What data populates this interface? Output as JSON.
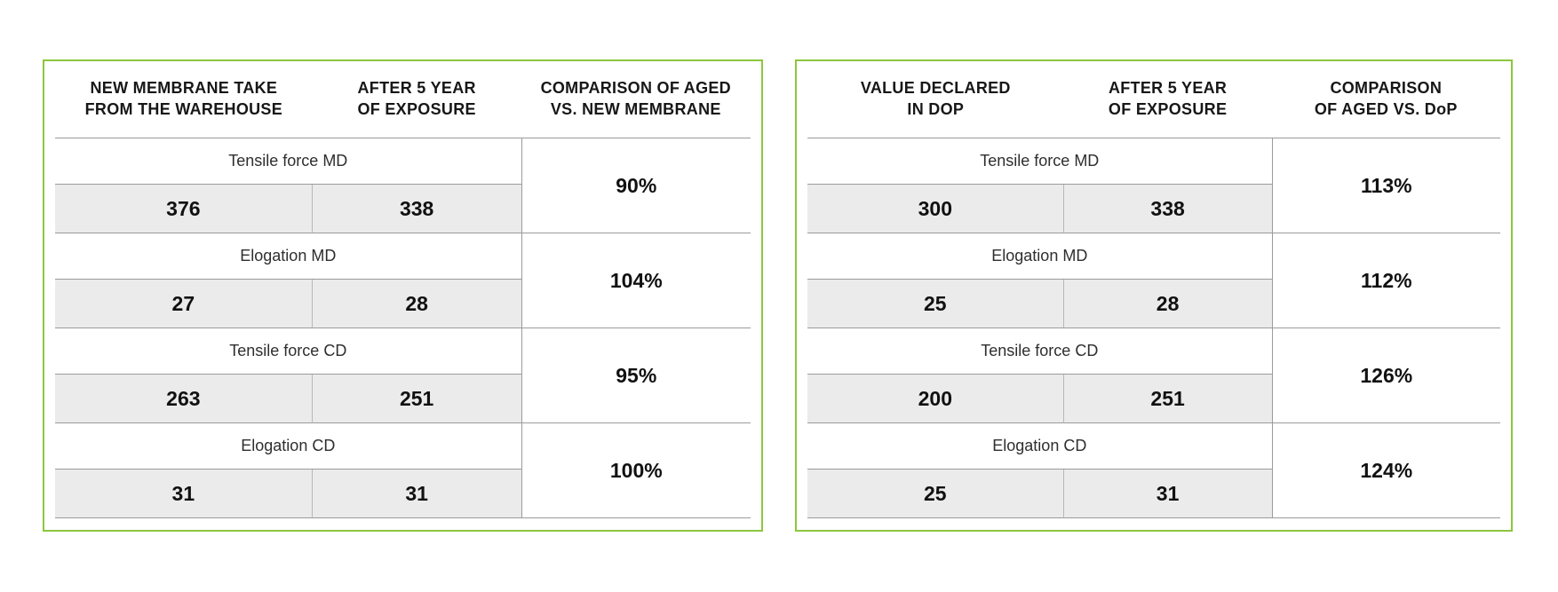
{
  "theme": {
    "background": "#ffffff",
    "border_green": "#8CC63F",
    "cell_gray": "#EBEBEB",
    "line_gray": "#9B9B9B",
    "text_color": "#1A1A1A"
  },
  "chart_data": [
    {
      "type": "table",
      "title": "Aged vs. new membrane comparison",
      "columns": [
        {
          "line1": "NEW MEMBRANE TAKE",
          "line2": "FROM THE WAREHOUSE"
        },
        {
          "line1": "AFTER 5 YEAR",
          "line2": "OF EXPOSURE"
        },
        {
          "line1": "COMPARISON OF AGED",
          "line2": "VS. NEW MEMBRANE"
        }
      ],
      "rows": [
        {
          "label": "Tensile force MD",
          "new_value": "376",
          "aged_value": "338",
          "comparison": "90%"
        },
        {
          "label": "Elogation MD",
          "new_value": "27",
          "aged_value": "28",
          "comparison": "104%"
        },
        {
          "label": "Tensile force CD",
          "new_value": "263",
          "aged_value": "251",
          "comparison": "95%"
        },
        {
          "label": "Elogation CD",
          "new_value": "31",
          "aged_value": "31",
          "comparison": "100%"
        }
      ]
    },
    {
      "type": "table",
      "title": "Aged vs. DoP comparison",
      "columns": [
        {
          "line1": "VALUE DECLARED",
          "line2": "IN DOP"
        },
        {
          "line1": "AFTER 5 YEAR",
          "line2": "OF EXPOSURE"
        },
        {
          "line1": "COMPARISON",
          "line2": "OF AGED VS. DoP"
        }
      ],
      "rows": [
        {
          "label": "Tensile force MD",
          "new_value": "300",
          "aged_value": "338",
          "comparison": "113%"
        },
        {
          "label": "Elogation MD",
          "new_value": "25",
          "aged_value": "28",
          "comparison": "112%"
        },
        {
          "label": "Tensile force CD",
          "new_value": "200",
          "aged_value": "251",
          "comparison": "126%"
        },
        {
          "label": "Elogation CD",
          "new_value": "25",
          "aged_value": "31",
          "comparison": "124%"
        }
      ]
    }
  ]
}
